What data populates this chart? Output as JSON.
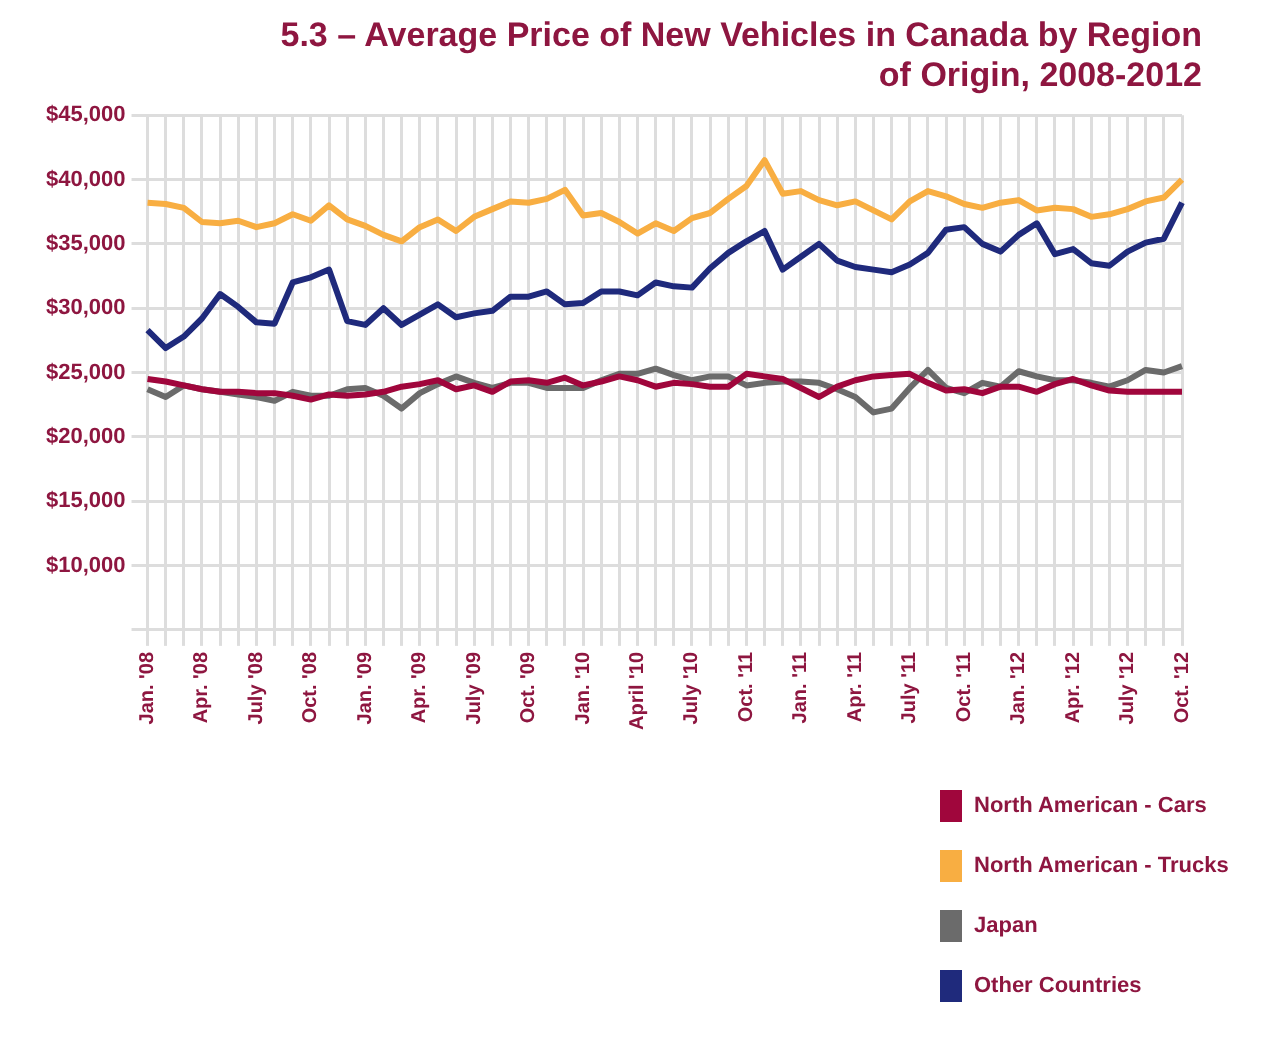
{
  "chart_data": {
    "type": "line",
    "title": "5.3 – Average Price of New Vehicles in Canada by Region of Origin, 2008-2012",
    "categories": [
      "Jan. '08",
      null,
      null,
      "Apr. '08",
      null,
      null,
      "July '08",
      null,
      null,
      "Oct. '08",
      null,
      null,
      "Jan. '09",
      null,
      null,
      "Apr. '09",
      null,
      null,
      "July '09",
      null,
      null,
      "Oct. '09",
      null,
      null,
      "Jan. '10",
      null,
      null,
      "April '10",
      null,
      null,
      "July '10",
      null,
      null,
      "Oct. '11",
      null,
      null,
      "Jan. '11",
      null,
      null,
      "Apr. '11",
      null,
      null,
      "July '11",
      null,
      null,
      "Oct. '11",
      null,
      null,
      "Jan. '12",
      null,
      null,
      "Apr. '12",
      null,
      null,
      "July '12",
      null,
      null,
      "Oct. '12"
    ],
    "series": [
      {
        "name": "North American - Cars",
        "color": "#a0063c",
        "values": [
          24500,
          24300,
          24000,
          23700,
          23500,
          23500,
          23400,
          23400,
          23200,
          22900,
          23300,
          23200,
          23300,
          23500,
          23900,
          24100,
          24400,
          23700,
          24000,
          23500,
          24300,
          24400,
          24200,
          24600,
          24000,
          24300,
          24700,
          24400,
          23900,
          24200,
          24100,
          23900,
          23900,
          24900,
          24700,
          24500,
          23800,
          23100,
          23900,
          24400,
          24700,
          24800,
          24900,
          24200,
          23600,
          23700,
          23400,
          23900,
          23900,
          23500,
          24100,
          24500,
          24000,
          23600,
          23500,
          23500,
          23500,
          23500
        ]
      },
      {
        "name": "North American - Trucks",
        "color": "#f8ae42",
        "values": [
          38200,
          38100,
          37800,
          36700,
          36600,
          36800,
          36300,
          36600,
          37300,
          36800,
          38000,
          36900,
          36400,
          35700,
          35200,
          36300,
          36900,
          36000,
          37100,
          37700,
          38300,
          38200,
          38500,
          39200,
          37200,
          37400,
          36700,
          35800,
          36600,
          36000,
          37000,
          37400,
          38500,
          39500,
          41500,
          38900,
          39100,
          38400,
          38000,
          38300,
          37600,
          36900,
          38300,
          39100,
          38700,
          38100,
          37800,
          38200,
          38400,
          37600,
          37800,
          37700,
          37100,
          37300,
          37700,
          38300,
          38600,
          40000
        ]
      },
      {
        "name": "Japan",
        "color": "#6b6b6b",
        "values": [
          23700,
          23100,
          24000,
          23700,
          23500,
          23300,
          23100,
          22800,
          23500,
          23200,
          23200,
          23700,
          23800,
          23200,
          22200,
          23400,
          24100,
          24700,
          24200,
          23800,
          24200,
          24200,
          23800,
          23800,
          23800,
          24400,
          24900,
          24900,
          25300,
          24800,
          24400,
          24700,
          24700,
          24000,
          24200,
          24300,
          24300,
          24200,
          23700,
          23100,
          21900,
          22200,
          23800,
          25200,
          23800,
          23400,
          24200,
          23900,
          25100,
          24700,
          24400,
          24400,
          24200,
          23900,
          24400,
          25200,
          25000,
          25500
        ]
      },
      {
        "name": "Other Countries",
        "color": "#1f2a7c",
        "values": [
          28300,
          26900,
          27800,
          29200,
          31100,
          30100,
          28900,
          28800,
          32000,
          32400,
          33000,
          29000,
          28700,
          30000,
          28700,
          29500,
          30300,
          29300,
          29600,
          29800,
          30900,
          30900,
          31300,
          30300,
          30400,
          31300,
          31300,
          31000,
          32000,
          31700,
          31600,
          33100,
          34300,
          35200,
          36000,
          33000,
          34000,
          35000,
          33700,
          33200,
          33000,
          32800,
          33400,
          34300,
          36100,
          36300,
          35000,
          34400,
          35700,
          36600,
          34200,
          34600,
          33500,
          33300,
          34400,
          35100,
          35400,
          38200
        ]
      }
    ],
    "ylim": [
      5000,
      45000
    ],
    "yticks": [
      {
        "value": 5000,
        "label": null
      },
      {
        "value": 10000,
        "label": "$10,000"
      },
      {
        "value": 15000,
        "label": "$15,000"
      },
      {
        "value": 20000,
        "label": "$20,000"
      },
      {
        "value": 25000,
        "label": "$25,000"
      },
      {
        "value": 30000,
        "label": "$30,000"
      },
      {
        "value": 35000,
        "label": "$35,000"
      },
      {
        "value": 40000,
        "label": "$40,000"
      },
      {
        "value": 45000,
        "label": "$45,000"
      }
    ],
    "grid": true,
    "legend": "bottom right"
  }
}
